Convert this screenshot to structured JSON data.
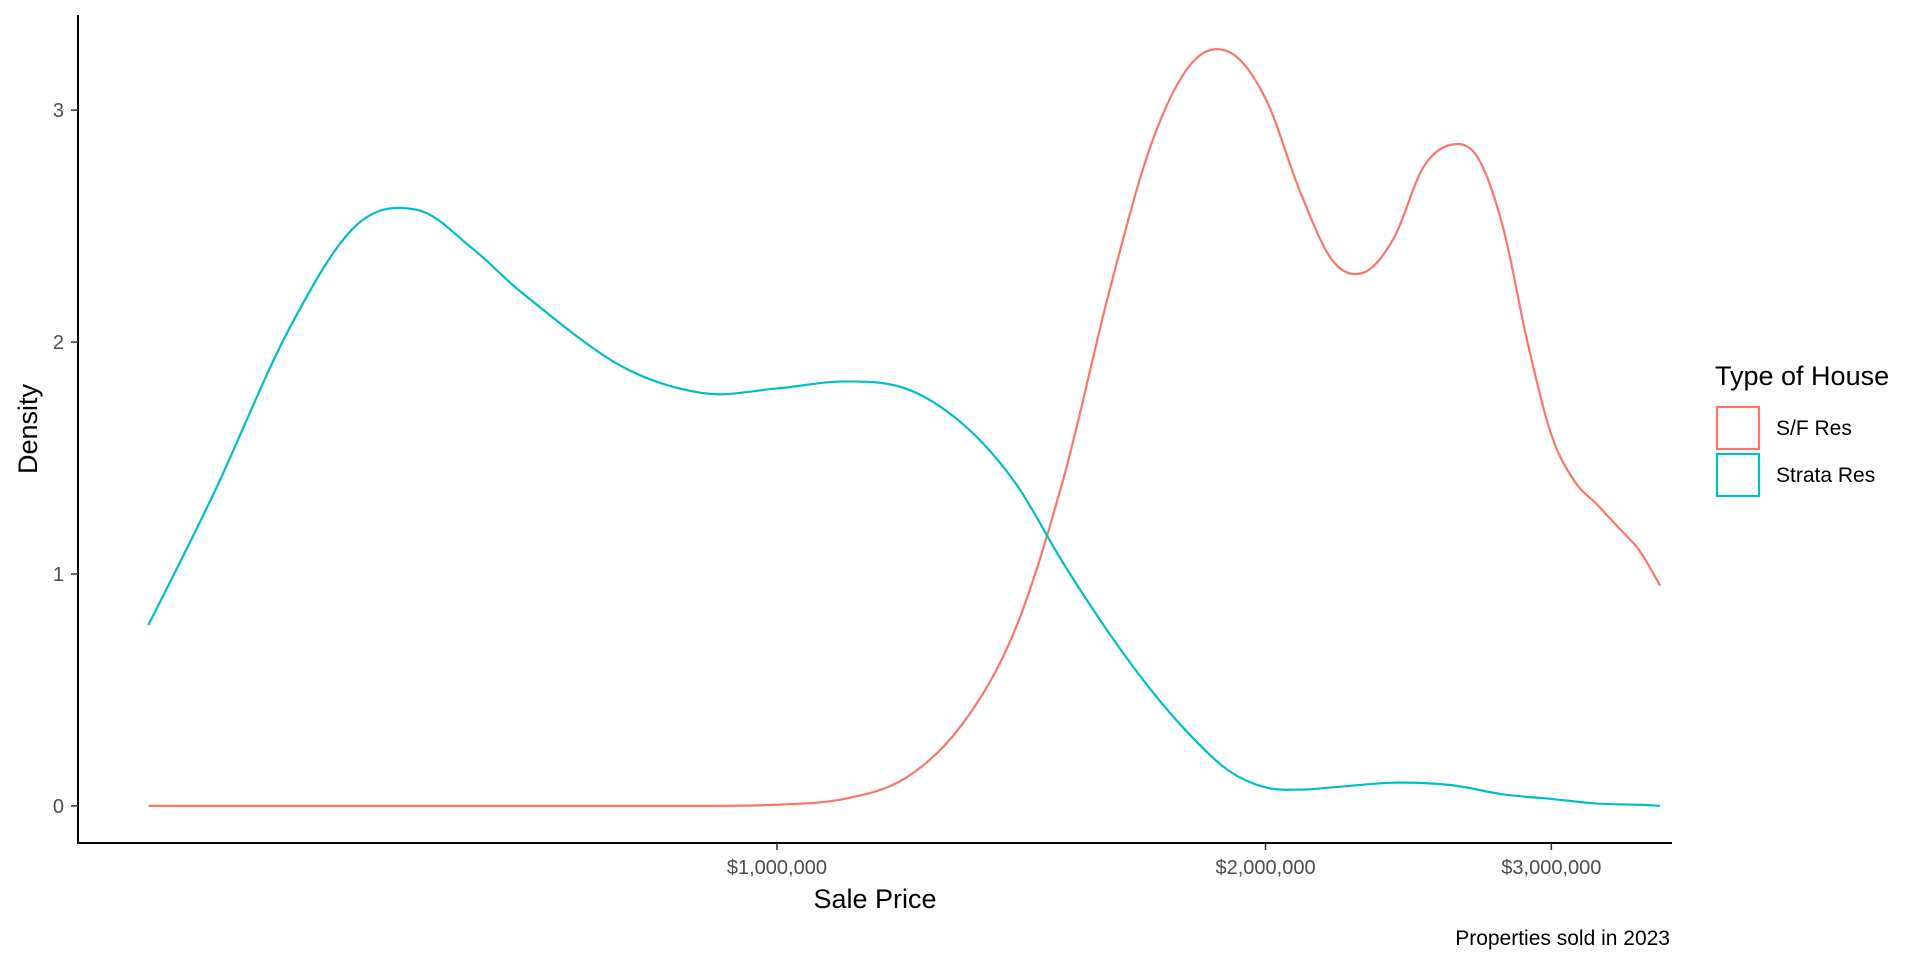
{
  "chart_data": {
    "type": "area",
    "subtype": "density",
    "xlabel": "Sale Price",
    "ylabel": "Density",
    "caption": "Properties sold in 2023",
    "x_scale": "log",
    "xlim": [
      371000,
      3550000
    ],
    "ylim": [
      -0.16,
      3.41
    ],
    "x_ticks": [
      1000000,
      2000000,
      3000000
    ],
    "x_tick_labels": [
      "$1,000,000",
      "$2,000,000",
      "$3,000,000"
    ],
    "y_ticks": [
      0,
      1,
      2,
      3
    ],
    "y_tick_labels": [
      "0",
      "1",
      "2",
      "3"
    ],
    "grid": false,
    "legend": {
      "title": "Type of House",
      "position": "right",
      "entries": [
        "S/F Res",
        "Strata Res"
      ]
    },
    "series": [
      {
        "name": "S/F Res",
        "color": "#F8766D",
        "x": [
          410000,
          500000,
          600000,
          700000,
          800000,
          900000,
          1000000,
          1100000,
          1200000,
          1300000,
          1400000,
          1500000,
          1600000,
          1700000,
          1800000,
          1900000,
          2000000,
          2100000,
          2200000,
          2300000,
          2400000,
          2500000,
          2600000,
          2700000,
          2800000,
          2900000,
          3000000,
          3100000,
          3200000,
          3300000,
          3400000,
          3500000
        ],
        "y": [
          0,
          0,
          0,
          0,
          0,
          0,
          0.005,
          0.03,
          0.12,
          0.35,
          0.75,
          1.4,
          2.2,
          2.85,
          3.2,
          3.25,
          3.05,
          2.65,
          2.35,
          2.3,
          2.45,
          2.75,
          2.85,
          2.8,
          2.5,
          2.0,
          1.6,
          1.4,
          1.3,
          1.2,
          1.1,
          0.95
        ]
      },
      {
        "name": "Strata Res",
        "color": "#00BFC4",
        "x": [
          410000,
          450000,
          500000,
          550000,
          600000,
          650000,
          700000,
          800000,
          900000,
          1000000,
          1100000,
          1200000,
          1300000,
          1400000,
          1500000,
          1600000,
          1700000,
          1800000,
          1900000,
          2000000,
          2100000,
          2200000,
          2400000,
          2600000,
          2800000,
          3000000,
          3200000,
          3400000,
          3500000
        ],
        "y": [
          0.78,
          1.35,
          2.05,
          2.5,
          2.57,
          2.4,
          2.2,
          1.9,
          1.78,
          1.8,
          1.83,
          1.8,
          1.65,
          1.4,
          1.05,
          0.75,
          0.5,
          0.3,
          0.15,
          0.08,
          0.07,
          0.08,
          0.1,
          0.09,
          0.05,
          0.03,
          0.01,
          0.005,
          0
        ]
      }
    ]
  }
}
